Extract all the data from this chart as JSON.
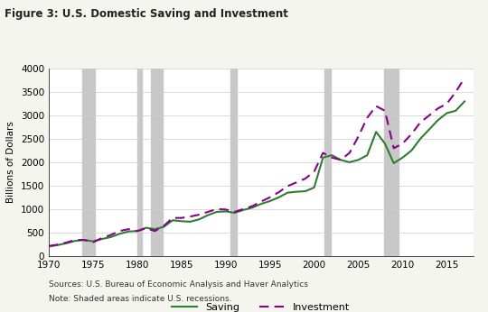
{
  "title": "Figure 3: U.S. Domestic Saving and Investment",
  "ylabel": "Billions of Dollars",
  "source_text": "Sources: U.S. Bureau of Economic Analysis and Haver Analytics",
  "note_text": "Note: Shaded areas indicate U.S. recessions.",
  "legend_saving": "Saving",
  "legend_investment": "Investment",
  "saving_color": "#2e7d32",
  "investment_color": "#8b008b",
  "recession_color": "#c8c8c8",
  "background_color": "#ffffff",
  "title_bar_color": "#5bb8c8",
  "ylim": [
    0,
    4000
  ],
  "yticks": [
    0,
    500,
    1000,
    1500,
    2000,
    2500,
    3000,
    3500,
    4000
  ],
  "xlim_start": 1970,
  "xlim_end": 2018,
  "xticks": [
    1970,
    1975,
    1980,
    1985,
    1990,
    1995,
    2000,
    2005,
    2010,
    2015
  ],
  "recessions": [
    [
      1973.75,
      1975.17
    ],
    [
      1980.0,
      1980.5
    ],
    [
      1981.5,
      1982.92
    ],
    [
      1990.5,
      1991.25
    ],
    [
      2001.17,
      2001.92
    ],
    [
      2007.92,
      2009.5
    ]
  ],
  "years": [
    1970,
    1971,
    1972,
    1973,
    1974,
    1975,
    1976,
    1977,
    1978,
    1979,
    1980,
    1981,
    1982,
    1983,
    1984,
    1985,
    1986,
    1987,
    1988,
    1989,
    1990,
    1991,
    1992,
    1993,
    1994,
    1995,
    1996,
    1997,
    1998,
    1999,
    2000,
    2001,
    2002,
    2003,
    2004,
    2005,
    2006,
    2007,
    2008,
    2009,
    2010,
    2011,
    2012,
    2013,
    2014,
    2015,
    2016,
    2017
  ],
  "saving": [
    200,
    230,
    270,
    320,
    340,
    310,
    360,
    400,
    470,
    520,
    530,
    600,
    570,
    620,
    760,
    740,
    730,
    780,
    870,
    940,
    950,
    920,
    980,
    1030,
    1110,
    1170,
    1250,
    1350,
    1370,
    1380,
    1460,
    2100,
    2150,
    2050,
    2000,
    2050,
    2150,
    2650,
    2400,
    1980,
    2100,
    2250,
    2500,
    2700,
    2900,
    3050,
    3100,
    3300
  ],
  "investment": [
    210,
    240,
    285,
    340,
    340,
    290,
    380,
    445,
    530,
    570,
    530,
    590,
    530,
    640,
    810,
    810,
    840,
    880,
    940,
    1000,
    990,
    940,
    1000,
    1060,
    1160,
    1250,
    1360,
    1490,
    1570,
    1650,
    1800,
    2200,
    2100,
    2050,
    2200,
    2550,
    2950,
    3200,
    3100,
    2300,
    2400,
    2600,
    2850,
    3000,
    3150,
    3250,
    3500,
    3800
  ]
}
